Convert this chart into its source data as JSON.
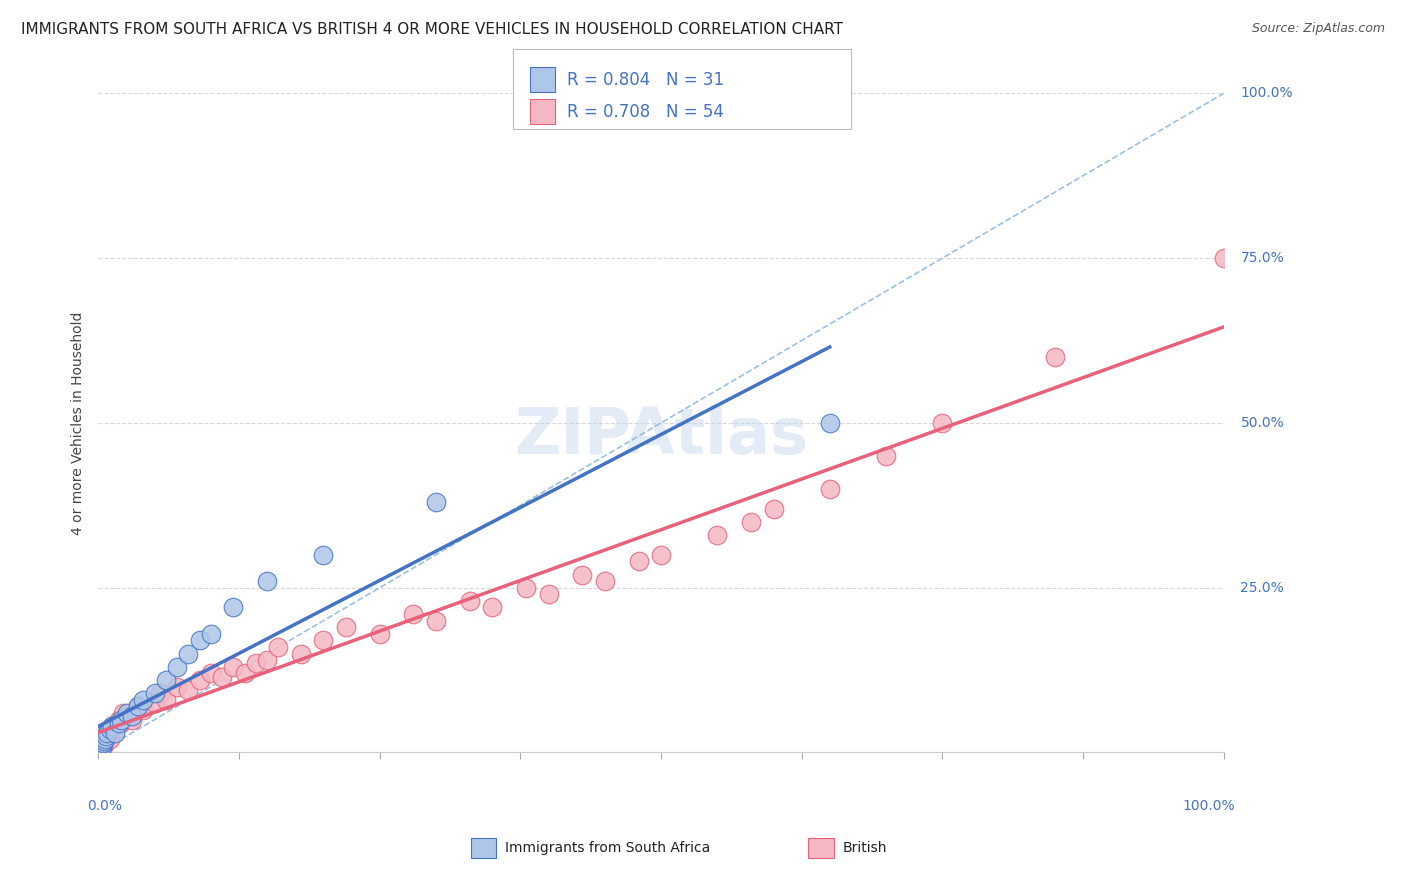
{
  "title": "IMMIGRANTS FROM SOUTH AFRICA VS BRITISH 4 OR MORE VEHICLES IN HOUSEHOLD CORRELATION CHART",
  "source": "Source: ZipAtlas.com",
  "ylabel_label": "4 or more Vehicles in Household",
  "ytick_labels": [
    "0.0%",
    "25.0%",
    "50.0%",
    "75.0%",
    "100.0%"
  ],
  "r_blue": 0.804,
  "n_blue": 31,
  "r_pink": 0.708,
  "n_pink": 54,
  "blue_color": "#aec6e8",
  "pink_color": "#f4b8c4",
  "blue_line_color": "#4472c4",
  "pink_line_color": "#e8607a",
  "ref_line_color": "#90b8e0",
  "background_color": "#ffffff",
  "grid_color": "#d8d8d8",
  "title_fontsize": 11,
  "legend_fontsize": 12,
  "blue_x": [
    0.1,
    0.15,
    0.2,
    0.25,
    0.3,
    0.35,
    0.4,
    0.5,
    0.6,
    0.7,
    0.8,
    1.0,
    1.2,
    1.5,
    1.8,
    2.0,
    2.5,
    3.0,
    3.5,
    4.0,
    5.0,
    6.0,
    7.0,
    8.0,
    9.0,
    10.0,
    12.0,
    15.0,
    20.0,
    30.0,
    65.0
  ],
  "blue_y": [
    0.3,
    0.5,
    0.8,
    1.0,
    1.2,
    0.8,
    1.5,
    1.8,
    2.0,
    2.5,
    3.0,
    3.5,
    4.0,
    3.0,
    4.5,
    5.0,
    6.0,
    5.5,
    7.0,
    8.0,
    9.0,
    11.0,
    13.0,
    15.0,
    17.0,
    18.0,
    22.0,
    26.0,
    30.0,
    38.0,
    50.0
  ],
  "pink_x": [
    0.1,
    0.2,
    0.3,
    0.4,
    0.5,
    0.6,
    0.7,
    0.8,
    0.9,
    1.0,
    1.2,
    1.5,
    1.8,
    2.0,
    2.2,
    2.5,
    3.0,
    3.5,
    4.0,
    5.0,
    5.5,
    6.0,
    7.0,
    8.0,
    9.0,
    10.0,
    11.0,
    12.0,
    13.0,
    14.0,
    15.0,
    16.0,
    18.0,
    20.0,
    22.0,
    25.0,
    28.0,
    30.0,
    33.0,
    35.0,
    38.0,
    40.0,
    43.0,
    45.0,
    48.0,
    50.0,
    55.0,
    58.0,
    60.0,
    65.0,
    70.0,
    75.0,
    85.0,
    100.0
  ],
  "pink_y": [
    0.5,
    1.0,
    1.5,
    2.0,
    1.2,
    2.5,
    1.8,
    3.0,
    2.5,
    2.0,
    4.0,
    3.5,
    5.0,
    4.5,
    6.0,
    5.5,
    5.0,
    7.0,
    6.5,
    7.5,
    9.0,
    8.0,
    10.0,
    9.5,
    11.0,
    12.0,
    11.5,
    13.0,
    12.0,
    13.5,
    14.0,
    16.0,
    15.0,
    17.0,
    19.0,
    18.0,
    21.0,
    20.0,
    23.0,
    22.0,
    25.0,
    24.0,
    27.0,
    26.0,
    29.0,
    30.0,
    33.0,
    35.0,
    37.0,
    40.0,
    45.0,
    50.0,
    60.0,
    75.0
  ],
  "blue_line_x_end": 65.0,
  "ref_line_x_end": 100.0,
  "ref_line_y_end": 100.0,
  "xlim": [
    0,
    100
  ],
  "ylim": [
    0,
    100
  ]
}
